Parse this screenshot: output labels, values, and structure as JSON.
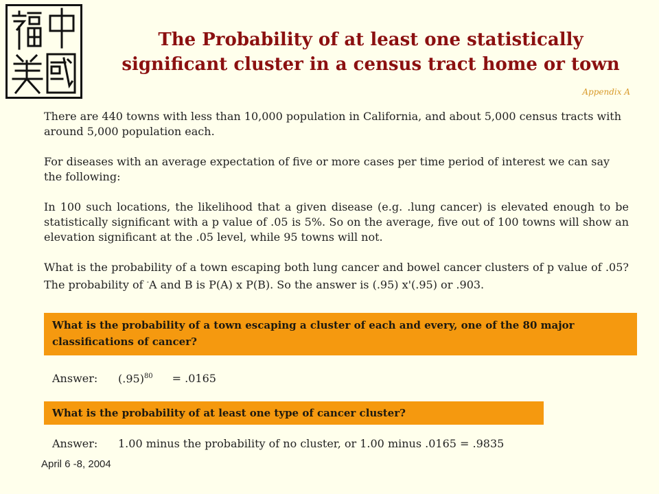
{
  "logo": {
    "alt_chars": "福中美國"
  },
  "title": {
    "line1": "The Probability of at least one statistically",
    "line2": "significant cluster in a census tract home or town"
  },
  "appendix_label": "Appendix A",
  "paragraphs": {
    "p1": "There are 440 towns with less than 10,000 population in California, and about 5,000 census tracts with around 5,000 population each.",
    "p2": "For diseases with an average expectation of five or more cases per time period of interest we can say the following:",
    "p3": "In 100 such locations, the likelihood that a given disease (e.g. .lung cancer) is elevated enough to be statistically significant with a p value of .05 is 5%. So on the average, five out of 100 towns will show an elevation significant at the .05 level, while 95 towns will not.",
    "p4_part1": "What is the probability of a town escaping both lung cancer and bowel cancer clusters of p value of .05? The probability of ",
    "p4_sup": "-",
    "p4_part2": "A and B is P(A) x P(B). So the answer is (.95) x'(.95) or .903."
  },
  "questions": {
    "q1": "What is the probability of a town escaping a cluster of each and every, one of the 80 major classifications  of cancer?",
    "q2": "What is the probability of at least one type of cancer cluster?"
  },
  "answers": {
    "a1_label": "Answer:",
    "a1_base": "(.95)",
    "a1_exp": "80",
    "a1_result": "= .0165",
    "a2_label": "Answer:",
    "a2_text": "1.00 minus the probability of no cluster, or 1.00 minus .0165 = .9835"
  },
  "footer": {
    "date": "April 6 -8, 2004"
  },
  "colors": {
    "background": "#FFFFEC",
    "title": "#8B1010",
    "appendix": "#D89A2A",
    "highlight_bar": "#F5990F"
  }
}
